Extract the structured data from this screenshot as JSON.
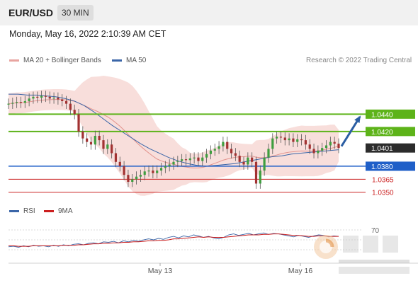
{
  "header": {
    "pair": "EUR/USD",
    "timeframe": "30 MIN",
    "datetime": "Monday, May 16, 2022 2:10:39 AM CET"
  },
  "legend": {
    "ma20_label": "MA 20 + Bollinger Bands",
    "ma50_label": "MA 50",
    "credit": "Research © 2022 Trading Central",
    "ma20_color": "#e8a4a0",
    "ma50_color": "#3b66a8"
  },
  "rsi_legend": {
    "rsi_label": "RSI",
    "ma_label": "9MA",
    "rsi_color": "#3b66a8",
    "ma_color": "#cc1f1f"
  },
  "chart_data": [
    {
      "type": "line",
      "title": "EUR/USD",
      "xlabel": "",
      "ylabel": "",
      "x_ticks": [
        "May 13",
        "May 16"
      ],
      "ylim": [
        1.034,
        1.049
      ],
      "current_price": 1.0401,
      "levels": [
        {
          "value": 1.044,
          "label": "1.0440",
          "kind": "resistance",
          "color": "#5db319"
        },
        {
          "value": 1.042,
          "label": "1.0420",
          "kind": "resistance",
          "color": "#5db319"
        },
        {
          "value": 1.038,
          "label": "1.0380",
          "kind": "pivot",
          "color": "#1f5fc8"
        },
        {
          "value": 1.0365,
          "label": "1.0365",
          "kind": "support",
          "color": "#cc2222"
        },
        {
          "value": 1.035,
          "label": "1.0350",
          "kind": "support",
          "color": "#cc2222"
        }
      ],
      "close": [
        1.0452,
        1.0453,
        1.0454,
        1.0453,
        1.0455,
        1.0458,
        1.046,
        1.0459,
        1.0461,
        1.046,
        1.0458,
        1.0459,
        1.0457,
        1.0455,
        1.0452,
        1.0445,
        1.044,
        1.042,
        1.0412,
        1.0408,
        1.0405,
        1.0415,
        1.041,
        1.04,
        1.0405,
        1.0395,
        1.0385,
        1.038,
        1.037,
        1.0362,
        1.0365,
        1.0368,
        1.037,
        1.0374,
        1.0375,
        1.0372,
        1.0375,
        1.0378,
        1.038,
        1.0382,
        1.0385,
        1.0386,
        1.0388,
        1.0387,
        1.0389,
        1.039,
        1.0386,
        1.039,
        1.0394,
        1.0398,
        1.04,
        1.0403,
        1.0408,
        1.04,
        1.0395,
        1.0392,
        1.0385,
        1.0382,
        1.039,
        1.0385,
        1.036,
        1.0375,
        1.039,
        1.04,
        1.0412,
        1.0414,
        1.0413,
        1.041,
        1.0412,
        1.0408,
        1.0411,
        1.041,
        1.0405,
        1.04,
        1.0395,
        1.0398,
        1.0401,
        1.0404,
        1.0408,
        1.0406,
        1.0401
      ],
      "ma50": [
        1.0463,
        1.0463,
        1.0462,
        1.0462,
        1.0461,
        1.046,
        1.0458,
        1.0455,
        1.045,
        1.0443,
        1.0435,
        1.0427,
        1.042,
        1.0413,
        1.0406,
        1.04,
        1.0395,
        1.039,
        1.0386,
        1.0383,
        1.0381,
        1.038,
        1.0381,
        1.0382,
        1.0383,
        1.0385,
        1.0387,
        1.0389,
        1.0391,
        1.0392,
        1.0394,
        1.0395,
        1.0396,
        1.0397,
        1.0398,
        1.0399
      ],
      "series": [
        {
          "name": "MA 20 + Bollinger Bands"
        },
        {
          "name": "MA 50"
        }
      ]
    },
    {
      "type": "line",
      "title": "RSI",
      "ylim": [
        20,
        80
      ],
      "level_labels": [
        70
      ],
      "series": [
        {
          "name": "RSI",
          "values": [
            36,
            37,
            35,
            38,
            36,
            39,
            37,
            38,
            36,
            39,
            37,
            40,
            38,
            41,
            42,
            40,
            43,
            44,
            42,
            46,
            45,
            47,
            44,
            48,
            46,
            49,
            47,
            50,
            52,
            50,
            53,
            51,
            55,
            57,
            54,
            58,
            56,
            60,
            58,
            55,
            57,
            54,
            52,
            55,
            60,
            62,
            59,
            61,
            63,
            60,
            62,
            64,
            61,
            63,
            62,
            60,
            58,
            56,
            59,
            57,
            55,
            58,
            60,
            59,
            56,
            58,
            57
          ]
        },
        {
          "name": "9MA",
          "values": [
            38,
            38,
            37,
            37,
            37,
            38,
            38,
            38,
            38,
            38,
            38,
            39,
            39,
            39,
            40,
            40,
            41,
            42,
            42,
            43,
            43,
            44,
            44,
            45,
            45,
            46,
            46,
            47,
            48,
            48,
            49,
            49,
            50,
            52,
            52,
            53,
            54,
            55,
            56,
            55,
            56,
            55,
            55,
            55,
            56,
            57,
            58,
            59,
            60,
            60,
            60,
            61,
            61,
            62,
            62,
            61,
            60,
            59,
            59,
            58,
            57,
            57,
            58,
            58,
            57,
            57,
            57
          ]
        }
      ]
    }
  ]
}
